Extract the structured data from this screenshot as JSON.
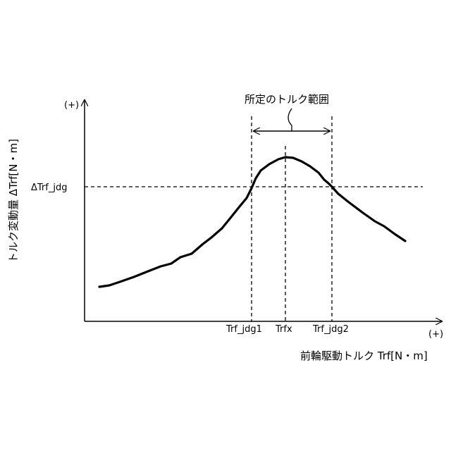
{
  "labels": {
    "y_axis_plus": "(+)",
    "x_axis_plus": "(+)",
    "y_axis_title": "トルク変動量 ΔTrf[N・m]",
    "x_axis_title": "前輪駆動トルク Trf[N・m]",
    "threshold": "ΔTrf_jdg",
    "range_label": "所定のトルク範囲",
    "tick_jdg1": "Trf_jdg1",
    "tick_trfx": "Trfx",
    "tick_jdg2": "Trf_jdg2"
  },
  "colors": {
    "line": "#000000",
    "background": "#ffffff"
  }
}
